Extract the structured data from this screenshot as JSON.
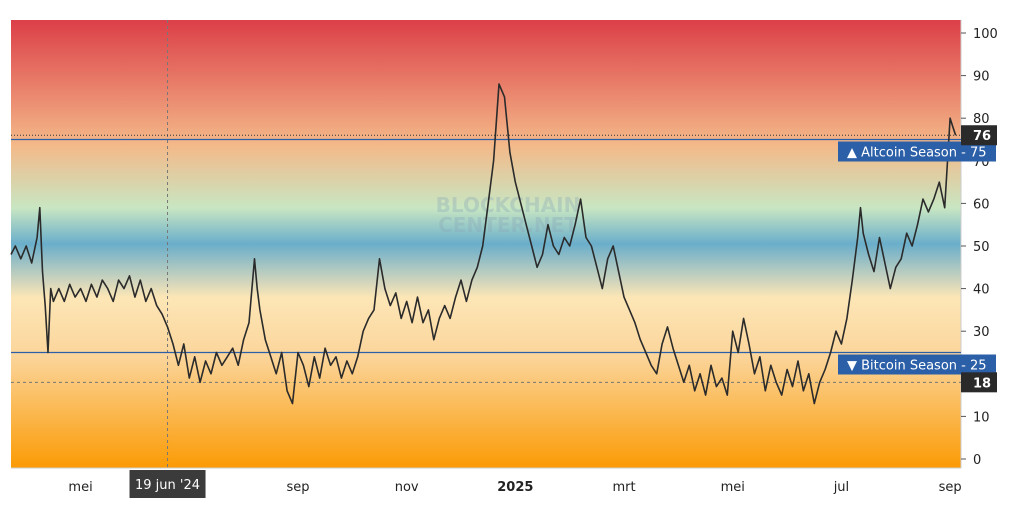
{
  "chart_data": {
    "type": "line",
    "ylim": [
      0,
      100
    ],
    "y_ticks": [
      0,
      10,
      20,
      30,
      40,
      50,
      60,
      70,
      80,
      90,
      100
    ],
    "x_range_months": [
      3.72,
      21.2
    ],
    "x_ticks": [
      {
        "label": "mei",
        "m": 5,
        "bold": false
      },
      {
        "label": "sep",
        "m": 9,
        "bold": false
      },
      {
        "label": "nov",
        "m": 11,
        "bold": false
      },
      {
        "label": "2025",
        "m": 13,
        "bold": true
      },
      {
        "label": "mrt",
        "m": 15,
        "bold": false
      },
      {
        "label": "mei",
        "m": 17,
        "bold": false
      },
      {
        "label": "jul",
        "m": 19,
        "bold": false
      },
      {
        "label": "sep",
        "m": 21,
        "bold": false
      }
    ],
    "series": [
      {
        "values": [
          [
            3.72,
            48
          ],
          [
            3.8,
            50
          ],
          [
            3.9,
            47
          ],
          [
            4.0,
            50
          ],
          [
            4.1,
            46
          ],
          [
            4.2,
            52
          ],
          [
            4.25,
            59
          ],
          [
            4.3,
            44
          ],
          [
            4.35,
            36
          ],
          [
            4.4,
            25
          ],
          [
            4.45,
            40
          ],
          [
            4.5,
            37
          ],
          [
            4.6,
            40
          ],
          [
            4.7,
            37
          ],
          [
            4.8,
            41
          ],
          [
            4.9,
            38
          ],
          [
            5.0,
            40
          ],
          [
            5.1,
            37
          ],
          [
            5.2,
            41
          ],
          [
            5.3,
            38
          ],
          [
            5.4,
            42
          ],
          [
            5.5,
            40
          ],
          [
            5.6,
            37
          ],
          [
            5.7,
            42
          ],
          [
            5.8,
            40
          ],
          [
            5.9,
            43
          ],
          [
            6.0,
            38
          ],
          [
            6.1,
            42
          ],
          [
            6.2,
            37
          ],
          [
            6.3,
            40
          ],
          [
            6.4,
            36
          ],
          [
            6.5,
            34
          ],
          [
            6.6,
            31
          ],
          [
            6.7,
            27
          ],
          [
            6.8,
            22
          ],
          [
            6.9,
            27
          ],
          [
            7.0,
            19
          ],
          [
            7.1,
            24
          ],
          [
            7.2,
            18
          ],
          [
            7.3,
            23
          ],
          [
            7.4,
            20
          ],
          [
            7.5,
            25
          ],
          [
            7.6,
            22
          ],
          [
            7.7,
            24
          ],
          [
            7.8,
            26
          ],
          [
            7.9,
            22
          ],
          [
            8.0,
            28
          ],
          [
            8.1,
            32
          ],
          [
            8.2,
            47
          ],
          [
            8.25,
            40
          ],
          [
            8.3,
            35
          ],
          [
            8.4,
            28
          ],
          [
            8.5,
            24
          ],
          [
            8.6,
            20
          ],
          [
            8.7,
            25
          ],
          [
            8.8,
            16
          ],
          [
            8.9,
            13
          ],
          [
            9.0,
            25
          ],
          [
            9.1,
            22
          ],
          [
            9.2,
            17
          ],
          [
            9.3,
            24
          ],
          [
            9.4,
            19
          ],
          [
            9.5,
            26
          ],
          [
            9.6,
            22
          ],
          [
            9.7,
            24
          ],
          [
            9.8,
            19
          ],
          [
            9.9,
            23
          ],
          [
            10.0,
            20
          ],
          [
            10.1,
            24
          ],
          [
            10.2,
            30
          ],
          [
            10.3,
            33
          ],
          [
            10.4,
            35
          ],
          [
            10.5,
            47
          ],
          [
            10.6,
            40
          ],
          [
            10.7,
            36
          ],
          [
            10.8,
            39
          ],
          [
            10.9,
            33
          ],
          [
            11.0,
            37
          ],
          [
            11.1,
            32
          ],
          [
            11.2,
            38
          ],
          [
            11.3,
            32
          ],
          [
            11.4,
            35
          ],
          [
            11.5,
            28
          ],
          [
            11.6,
            33
          ],
          [
            11.7,
            36
          ],
          [
            11.8,
            33
          ],
          [
            11.9,
            38
          ],
          [
            12.0,
            42
          ],
          [
            12.1,
            37
          ],
          [
            12.2,
            42
          ],
          [
            12.3,
            45
          ],
          [
            12.4,
            50
          ],
          [
            12.5,
            60
          ],
          [
            12.6,
            70
          ],
          [
            12.7,
            88
          ],
          [
            12.8,
            85
          ],
          [
            12.9,
            72
          ],
          [
            13.0,
            65
          ],
          [
            13.1,
            60
          ],
          [
            13.2,
            55
          ],
          [
            13.3,
            50
          ],
          [
            13.4,
            45
          ],
          [
            13.5,
            48
          ],
          [
            13.6,
            55
          ],
          [
            13.7,
            50
          ],
          [
            13.8,
            48
          ],
          [
            13.9,
            52
          ],
          [
            14.0,
            50
          ],
          [
            14.1,
            55
          ],
          [
            14.2,
            61
          ],
          [
            14.3,
            52
          ],
          [
            14.4,
            50
          ],
          [
            14.5,
            45
          ],
          [
            14.6,
            40
          ],
          [
            14.7,
            47
          ],
          [
            14.8,
            50
          ],
          [
            14.9,
            44
          ],
          [
            15.0,
            38
          ],
          [
            15.1,
            35
          ],
          [
            15.2,
            32
          ],
          [
            15.3,
            28
          ],
          [
            15.4,
            25
          ],
          [
            15.5,
            22
          ],
          [
            15.6,
            20
          ],
          [
            15.7,
            27
          ],
          [
            15.8,
            31
          ],
          [
            15.9,
            26
          ],
          [
            16.0,
            22
          ],
          [
            16.1,
            18
          ],
          [
            16.2,
            22
          ],
          [
            16.3,
            16
          ],
          [
            16.4,
            20
          ],
          [
            16.5,
            15
          ],
          [
            16.6,
            22
          ],
          [
            16.7,
            17
          ],
          [
            16.8,
            19
          ],
          [
            16.9,
            15
          ],
          [
            17.0,
            30
          ],
          [
            17.1,
            25
          ],
          [
            17.2,
            33
          ],
          [
            17.3,
            27
          ],
          [
            17.4,
            20
          ],
          [
            17.5,
            24
          ],
          [
            17.6,
            16
          ],
          [
            17.7,
            22
          ],
          [
            17.8,
            18
          ],
          [
            17.9,
            15
          ],
          [
            18.0,
            21
          ],
          [
            18.1,
            17
          ],
          [
            18.2,
            23
          ],
          [
            18.3,
            16
          ],
          [
            18.4,
            20
          ],
          [
            18.5,
            13
          ],
          [
            18.6,
            18
          ],
          [
            18.7,
            21
          ],
          [
            18.8,
            25
          ],
          [
            18.9,
            30
          ],
          [
            19.0,
            27
          ],
          [
            19.1,
            33
          ],
          [
            19.2,
            42
          ],
          [
            19.3,
            52
          ],
          [
            19.35,
            59
          ],
          [
            19.4,
            53
          ],
          [
            19.5,
            48
          ],
          [
            19.6,
            44
          ],
          [
            19.7,
            52
          ],
          [
            19.8,
            46
          ],
          [
            19.9,
            40
          ],
          [
            20.0,
            45
          ],
          [
            20.1,
            47
          ],
          [
            20.2,
            53
          ],
          [
            20.3,
            50
          ],
          [
            20.4,
            55
          ],
          [
            20.5,
            61
          ],
          [
            20.6,
            58
          ],
          [
            20.7,
            61
          ],
          [
            20.8,
            65
          ],
          [
            20.9,
            59
          ],
          [
            21.0,
            80
          ],
          [
            21.05,
            78
          ],
          [
            21.1,
            76
          ]
        ]
      }
    ],
    "threshold_lines": [
      {
        "name": "Altcoin Season",
        "value": 75,
        "label": "▲ Altcoin Season - 75"
      },
      {
        "name": "Bitcoin Season",
        "value": 25,
        "label": "▼ Bitcoin Season - 25"
      }
    ],
    "price_markers": [
      {
        "value": 76,
        "label": "76"
      },
      {
        "value": 18,
        "label": "18"
      }
    ],
    "crosshair": {
      "date_label": "19 jun '24",
      "m": 6.6
    },
    "watermark": {
      "line1": "BLOCKCHAIN",
      "line2": "CENTER.NET"
    },
    "colors": {
      "line": "#2b2b2b",
      "threshold": "#2b5fa8",
      "label_bg": "#2b5fa8",
      "price_bg": "#2a2a2a",
      "axis_text": "#222222",
      "grad_top": "#dc3f48",
      "grad_upper": "#f4b989",
      "grad_mid": "#c8e6c2",
      "grad_blue": "#6aaecb",
      "grad_lower": "#fde6b6",
      "grad_bottom": "#fb9b05"
    }
  }
}
